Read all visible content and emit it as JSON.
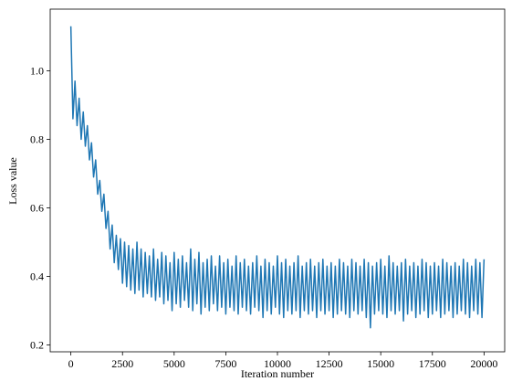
{
  "chart_data": {
    "type": "line",
    "xlabel": "Iteration number",
    "ylabel": "Loss value",
    "xlim": [
      -1000,
      21000
    ],
    "ylim": [
      0.18,
      1.18
    ],
    "xticks": [
      0,
      2500,
      5000,
      7500,
      10000,
      12500,
      15000,
      17500,
      20000
    ],
    "yticks": [
      0.2,
      0.4,
      0.6,
      0.8,
      {
        "value": 1,
        "label": "1.0"
      }
    ],
    "series": [
      {
        "color": "#1f77b4",
        "x": [
          0,
          100,
          200,
          300,
          400,
          500,
          600,
          700,
          800,
          900,
          1000,
          1100,
          1200,
          1300,
          1400,
          1500,
          1600,
          1700,
          1800,
          1900,
          2000,
          2100,
          2200,
          2300,
          2400,
          2500,
          2600,
          2700,
          2800,
          2900,
          3000,
          3100,
          3200,
          3300,
          3400,
          3500,
          3600,
          3700,
          3800,
          3900,
          4000,
          4100,
          4200,
          4300,
          4400,
          4500,
          4600,
          4700,
          4800,
          4900,
          5000,
          5100,
          5200,
          5300,
          5400,
          5500,
          5600,
          5700,
          5800,
          5900,
          6000,
          6100,
          6200,
          6300,
          6400,
          6500,
          6600,
          6700,
          6800,
          6900,
          7000,
          7100,
          7200,
          7300,
          7400,
          7500,
          7600,
          7700,
          7800,
          7900,
          8000,
          8100,
          8200,
          8300,
          8400,
          8500,
          8600,
          8700,
          8800,
          8900,
          9000,
          9100,
          9200,
          9300,
          9400,
          9500,
          9600,
          9700,
          9800,
          9900,
          10000,
          10100,
          10200,
          10300,
          10400,
          10500,
          10600,
          10700,
          10800,
          10900,
          11000,
          11100,
          11200,
          11300,
          11400,
          11500,
          11600,
          11700,
          11800,
          11900,
          12000,
          12100,
          12200,
          12300,
          12400,
          12500,
          12600,
          12700,
          12800,
          12900,
          13000,
          13100,
          13200,
          13300,
          13400,
          13500,
          13600,
          13700,
          13800,
          13900,
          14000,
          14100,
          14200,
          14300,
          14400,
          14500,
          14600,
          14700,
          14800,
          14900,
          15000,
          15100,
          15200,
          15300,
          15400,
          15500,
          15600,
          15700,
          15800,
          15900,
          16000,
          16100,
          16200,
          16300,
          16400,
          16500,
          16600,
          16700,
          16800,
          16900,
          17000,
          17100,
          17200,
          17300,
          17400,
          17500,
          17600,
          17700,
          17800,
          17900,
          18000,
          18100,
          18200,
          18300,
          18400,
          18500,
          18600,
          18700,
          18800,
          18900,
          19000,
          19100,
          19200,
          19300,
          19400,
          19500,
          19600,
          19700,
          19800,
          19900,
          20000
        ],
        "values": [
          1.13,
          0.86,
          0.97,
          0.84,
          0.92,
          0.8,
          0.88,
          0.78,
          0.84,
          0.74,
          0.79,
          0.69,
          0.74,
          0.64,
          0.68,
          0.59,
          0.64,
          0.54,
          0.59,
          0.48,
          0.55,
          0.44,
          0.52,
          0.42,
          0.51,
          0.38,
          0.5,
          0.37,
          0.49,
          0.36,
          0.48,
          0.35,
          0.5,
          0.36,
          0.48,
          0.34,
          0.47,
          0.35,
          0.46,
          0.34,
          0.48,
          0.33,
          0.45,
          0.34,
          0.47,
          0.32,
          0.46,
          0.33,
          0.44,
          0.3,
          0.47,
          0.32,
          0.45,
          0.31,
          0.46,
          0.33,
          0.44,
          0.31,
          0.48,
          0.3,
          0.45,
          0.32,
          0.47,
          0.29,
          0.44,
          0.31,
          0.45,
          0.3,
          0.46,
          0.32,
          0.43,
          0.3,
          0.46,
          0.31,
          0.44,
          0.29,
          0.45,
          0.31,
          0.43,
          0.3,
          0.46,
          0.29,
          0.44,
          0.31,
          0.45,
          0.3,
          0.43,
          0.29,
          0.44,
          0.31,
          0.46,
          0.3,
          0.43,
          0.28,
          0.45,
          0.3,
          0.44,
          0.29,
          0.43,
          0.31,
          0.46,
          0.29,
          0.44,
          0.28,
          0.45,
          0.3,
          0.43,
          0.29,
          0.44,
          0.3,
          0.46,
          0.28,
          0.43,
          0.3,
          0.44,
          0.29,
          0.45,
          0.3,
          0.43,
          0.28,
          0.44,
          0.3,
          0.45,
          0.29,
          0.43,
          0.3,
          0.44,
          0.28,
          0.43,
          0.29,
          0.45,
          0.3,
          0.44,
          0.29,
          0.43,
          0.28,
          0.45,
          0.3,
          0.44,
          0.29,
          0.43,
          0.3,
          0.45,
          0.28,
          0.44,
          0.25,
          0.43,
          0.29,
          0.44,
          0.3,
          0.45,
          0.29,
          0.43,
          0.28,
          0.46,
          0.3,
          0.44,
          0.29,
          0.43,
          0.3,
          0.44,
          0.27,
          0.45,
          0.29,
          0.43,
          0.3,
          0.44,
          0.28,
          0.43,
          0.29,
          0.45,
          0.3,
          0.44,
          0.28,
          0.43,
          0.29,
          0.44,
          0.3,
          0.43,
          0.28,
          0.45,
          0.29,
          0.44,
          0.3,
          0.43,
          0.28,
          0.44,
          0.29,
          0.43,
          0.3,
          0.45,
          0.29,
          0.44,
          0.28,
          0.43,
          0.3,
          0.45,
          0.29,
          0.44,
          0.28,
          0.45
        ]
      }
    ]
  }
}
